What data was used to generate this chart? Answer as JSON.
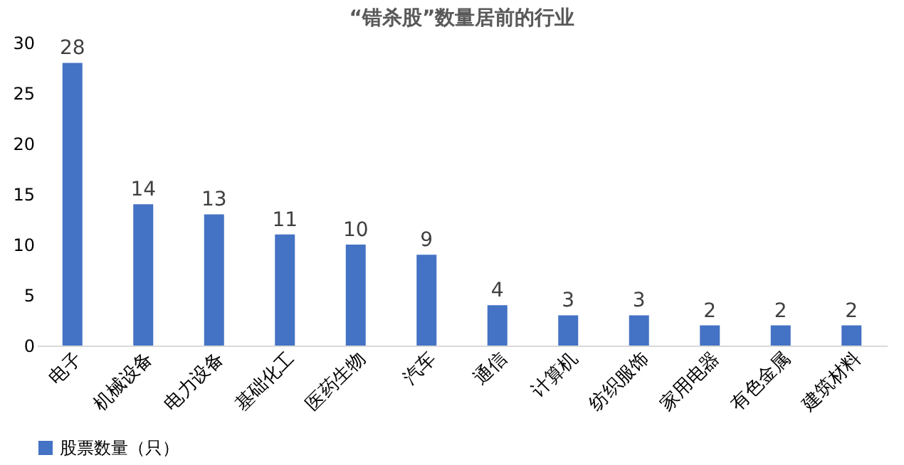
{
  "chart_data": {
    "type": "bar",
    "title": "“错杀股”数量居前的行业",
    "categories": [
      "电子",
      "机械设备",
      "电力设备",
      "基础化工",
      "医药生物",
      "汽车",
      "通信",
      "计算机",
      "纺织服饰",
      "家用电器",
      "有色金属",
      "建筑材料"
    ],
    "series": [
      {
        "name": "股票数量（只）",
        "color": "#4472c4",
        "values": [
          28,
          14,
          13,
          11,
          10,
          9,
          4,
          3,
          3,
          2,
          2,
          2
        ]
      }
    ],
    "ylim": [
      0,
      30
    ],
    "yticks": [
      0,
      5,
      10,
      15,
      20,
      25,
      30
    ],
    "data_labels": true,
    "legend": "bottom",
    "grid": false
  }
}
